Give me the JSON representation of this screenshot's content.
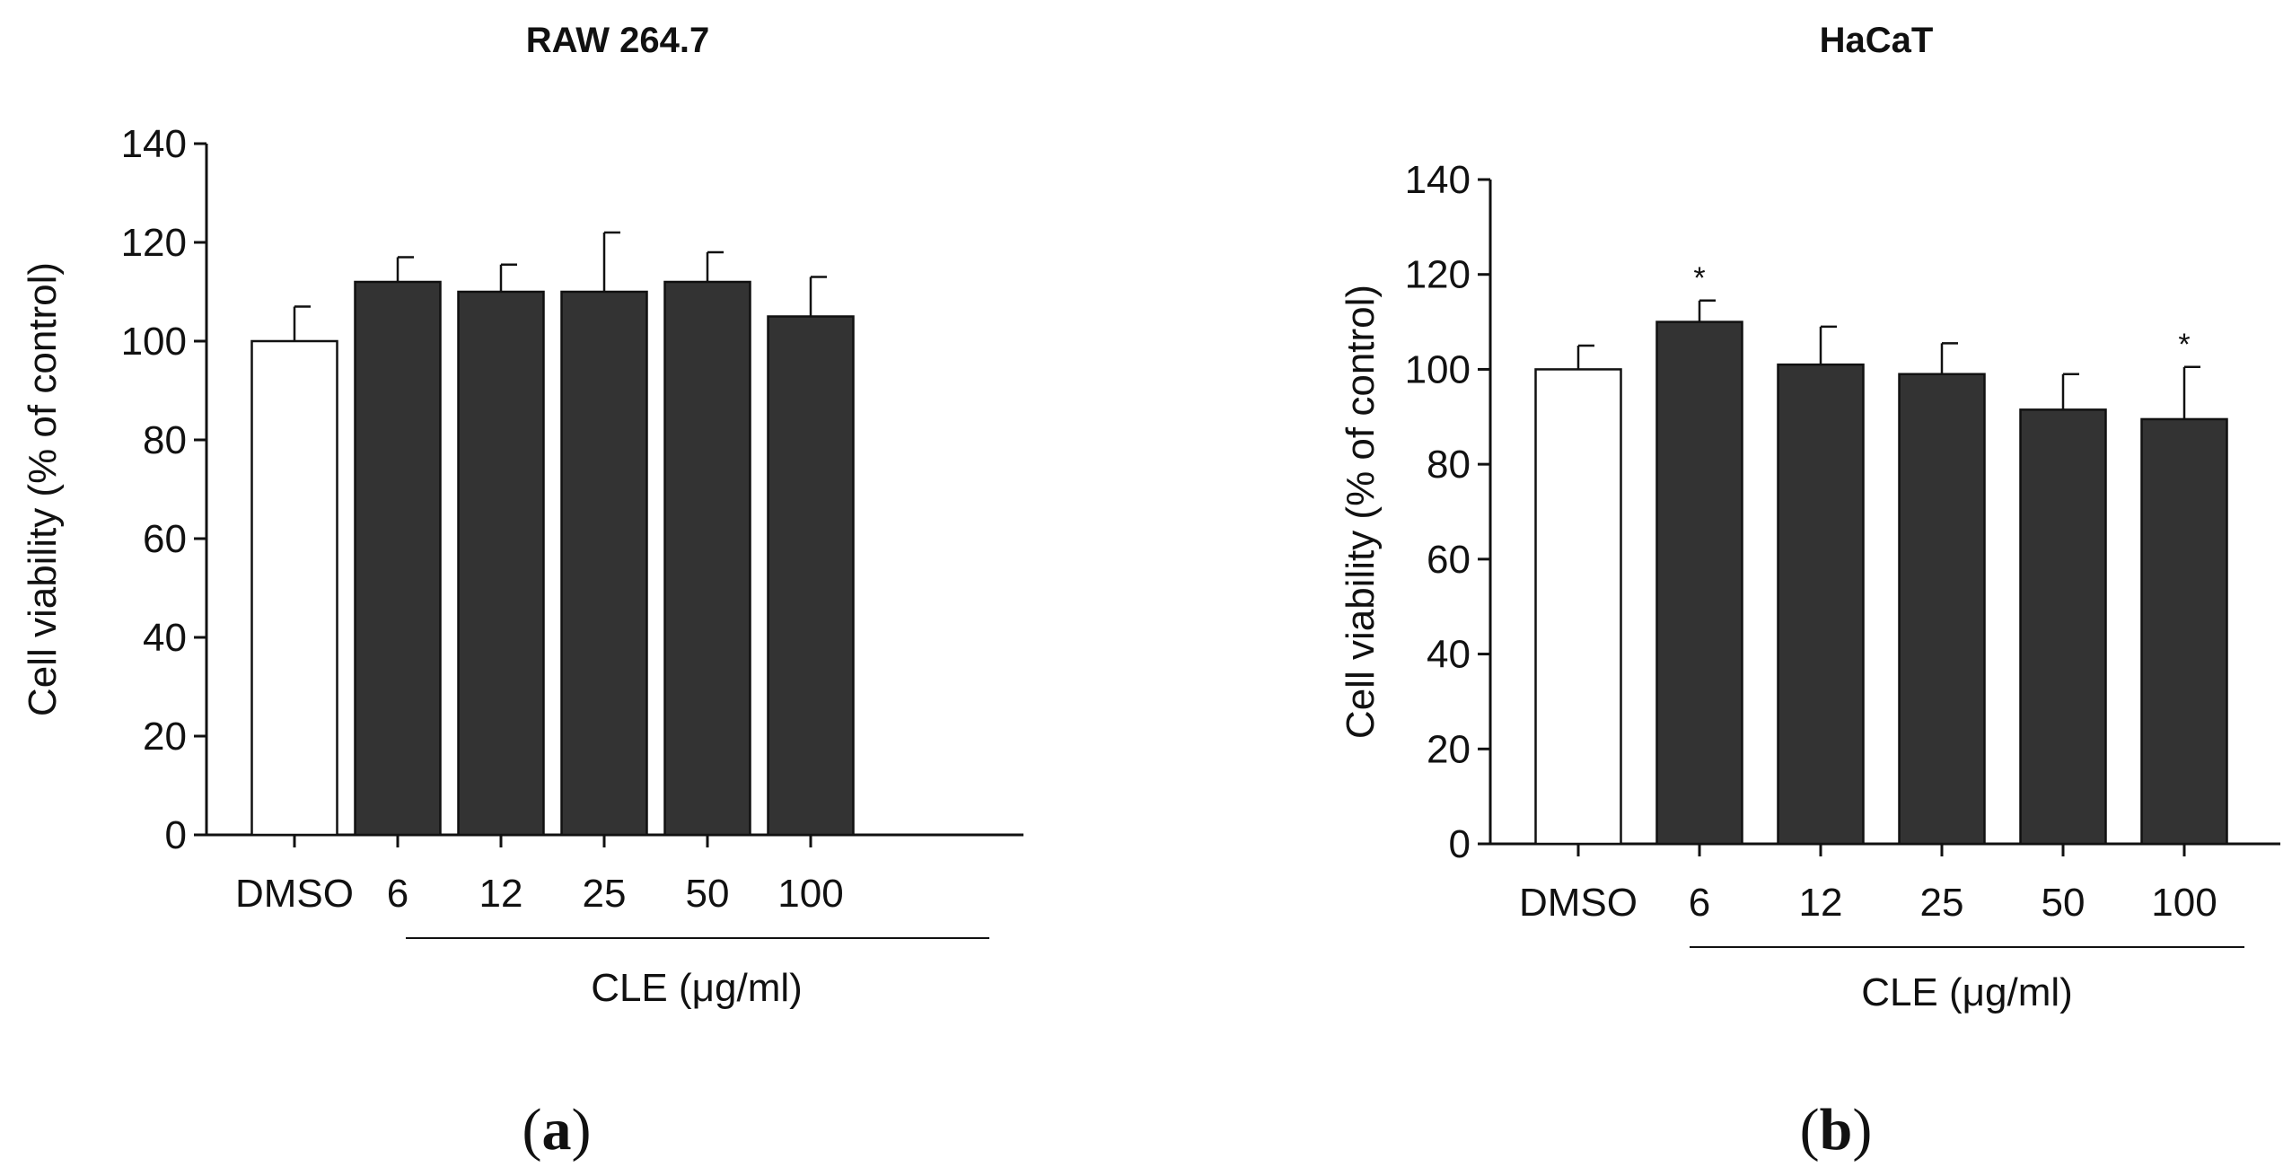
{
  "chart_data": [
    {
      "type": "bar",
      "panel": "a",
      "title": "RAW 264.7",
      "ylabel": "Cell viability (% of control)",
      "xlabel": "CLE (μg/ml)",
      "ylim": [
        0,
        140
      ],
      "yticks": [
        0,
        20,
        40,
        60,
        80,
        100,
        120,
        140
      ],
      "categories": [
        "DMSO",
        "6",
        "12",
        "25",
        "50",
        "100"
      ],
      "values": [
        100,
        112,
        110,
        110,
        112,
        105
      ],
      "errors": [
        7,
        5,
        5.5,
        12,
        6,
        8
      ],
      "colors": [
        "#ffffff",
        "#333333",
        "#333333",
        "#333333",
        "#333333",
        "#333333"
      ],
      "significance": [
        "",
        "",
        "",
        "",
        "",
        ""
      ]
    },
    {
      "type": "bar",
      "panel": "b",
      "title": "HaCaT",
      "ylabel": "Cell viability (% of control)",
      "xlabel": "CLE (μg/ml)",
      "ylim": [
        0,
        140
      ],
      "yticks": [
        0,
        20,
        40,
        60,
        80,
        100,
        120,
        140
      ],
      "categories": [
        "DMSO",
        "6",
        "12",
        "25",
        "50",
        "100"
      ],
      "values": [
        100,
        110,
        101,
        99,
        91.5,
        89.5
      ],
      "errors": [
        5,
        4.5,
        8,
        6.5,
        7.5,
        11
      ],
      "colors": [
        "#ffffff",
        "#333333",
        "#333333",
        "#333333",
        "#333333",
        "#333333"
      ],
      "significance": [
        "",
        "*",
        "",
        "",
        "",
        "*"
      ]
    }
  ],
  "panels": [
    {
      "open": "(",
      "letter": "a",
      "close": ")"
    },
    {
      "open": "(",
      "letter": "b",
      "close": ")"
    }
  ]
}
